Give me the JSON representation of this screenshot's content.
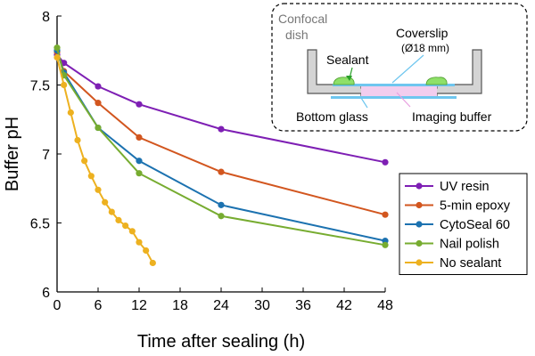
{
  "chart_data": {
    "type": "line",
    "xlabel": "Time after sealing (h)",
    "ylabel": "Buffer pH",
    "xlim": [
      0,
      48
    ],
    "ylim": [
      6,
      8
    ],
    "xticks": [
      0,
      6,
      12,
      18,
      24,
      30,
      36,
      42,
      48
    ],
    "yticks": [
      6,
      6.5,
      7,
      7.5,
      8
    ],
    "ytick_labels": [
      "6",
      "6.5",
      "7",
      "7.5",
      "8"
    ],
    "grid": false,
    "legend_position": "right",
    "series": [
      {
        "name": "UV resin",
        "color": "#7e1fb4",
        "x": [
          0,
          1,
          6,
          12,
          24,
          48
        ],
        "y": [
          7.72,
          7.66,
          7.49,
          7.36,
          7.18,
          6.94
        ]
      },
      {
        "name": "5-min epoxy",
        "color": "#d2561f",
        "x": [
          0,
          1,
          6,
          12,
          24,
          48
        ],
        "y": [
          7.74,
          7.6,
          7.37,
          7.12,
          6.87,
          6.56
        ]
      },
      {
        "name": "CytoSeal 60",
        "color": "#1c72b0",
        "x": [
          0,
          1,
          6,
          12,
          24,
          48
        ],
        "y": [
          7.75,
          7.59,
          7.19,
          6.95,
          6.63,
          6.37
        ]
      },
      {
        "name": "Nail polish",
        "color": "#77ac30",
        "x": [
          0,
          1,
          6,
          12,
          24,
          48
        ],
        "y": [
          7.77,
          7.57,
          7.19,
          6.86,
          6.55,
          6.34
        ]
      },
      {
        "name": "No sealant",
        "color": "#edb120",
        "x": [
          0,
          1,
          2,
          3,
          4,
          5,
          6,
          7,
          8,
          9,
          10,
          11,
          12,
          13,
          14
        ],
        "y": [
          7.7,
          7.5,
          7.3,
          7.1,
          6.95,
          6.84,
          6.74,
          6.65,
          6.58,
          6.52,
          6.48,
          6.44,
          6.36,
          6.3,
          6.21
        ]
      }
    ],
    "inset": {
      "dish_label": [
        "Confocal",
        "dish"
      ],
      "coverslip_label": "Coverslip",
      "coverslip_size": "(Ø18 mm)",
      "sealant_label": "Sealant",
      "bottom_glass_label": "Bottom glass",
      "buffer_label": "Imaging buffer",
      "colors": {
        "dish": "#d4d4d4",
        "glass": "#6ec6ef",
        "sealant": "#8ee068",
        "buffer": "#f2cdee"
      }
    }
  }
}
